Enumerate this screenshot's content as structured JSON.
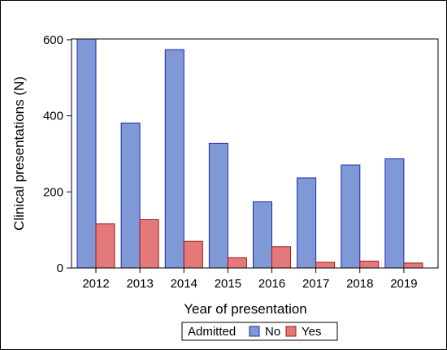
{
  "chart_data": {
    "type": "bar",
    "title": "",
    "xlabel": "Year of  presentation",
    "ylabel": "Clinical presentations (N)",
    "categories": [
      "2012",
      "2013",
      "2014",
      "2015",
      "2016",
      "2017",
      "2018",
      "2019"
    ],
    "series": [
      {
        "name": "No",
        "values": [
          602,
          381,
          574,
          328,
          174,
          237,
          271,
          287
        ]
      },
      {
        "name": "Yes",
        "values": [
          116,
          127,
          70,
          27,
          56,
          15,
          18,
          13
        ]
      }
    ],
    "ylim": [
      0,
      602
    ],
    "yticks": [
      0,
      200,
      400,
      600
    ],
    "grid": false,
    "legend": {
      "title": "Admitted",
      "placement": "bottom"
    }
  },
  "colors": {
    "No": "#7f99d6",
    "No_edge": "#2323b5",
    "Yes": "#e57979",
    "Yes_edge": "#a01818"
  }
}
